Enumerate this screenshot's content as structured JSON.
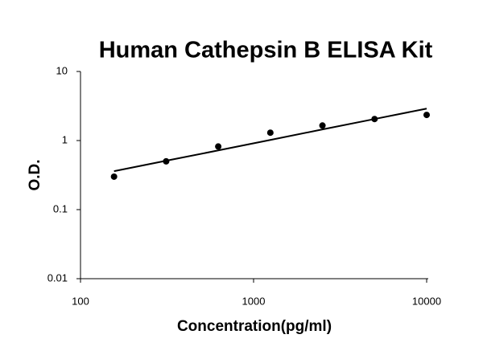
{
  "chart_data": {
    "type": "scatter",
    "title": "Human Cathepsin B ELISA Kit",
    "x_label": "Concentration(pg/ml)",
    "y_label": "O.D.",
    "xscale": "log",
    "yscale": "log",
    "grid": false,
    "xlim": [
      100,
      10000
    ],
    "ylim": [
      0.01,
      10
    ],
    "xticks": [
      100,
      1000,
      10000
    ],
    "yticks": [
      0.01,
      0.1,
      1,
      10
    ],
    "series": [
      {
        "type": "scatter",
        "color": "#000000",
        "x": [
          156.25,
          312.5,
          625,
          1250,
          2500,
          5000,
          10000
        ],
        "values": [
          0.3,
          0.5,
          0.82,
          1.3,
          1.65,
          2.05,
          2.35
        ]
      },
      {
        "type": "line",
        "color": "#000000",
        "x": [
          156.25,
          312.5,
          625,
          1250,
          2500,
          5000,
          10000
        ],
        "values": [
          0.36,
          0.51,
          0.72,
          1.02,
          1.45,
          2.05,
          2.9
        ]
      }
    ]
  }
}
